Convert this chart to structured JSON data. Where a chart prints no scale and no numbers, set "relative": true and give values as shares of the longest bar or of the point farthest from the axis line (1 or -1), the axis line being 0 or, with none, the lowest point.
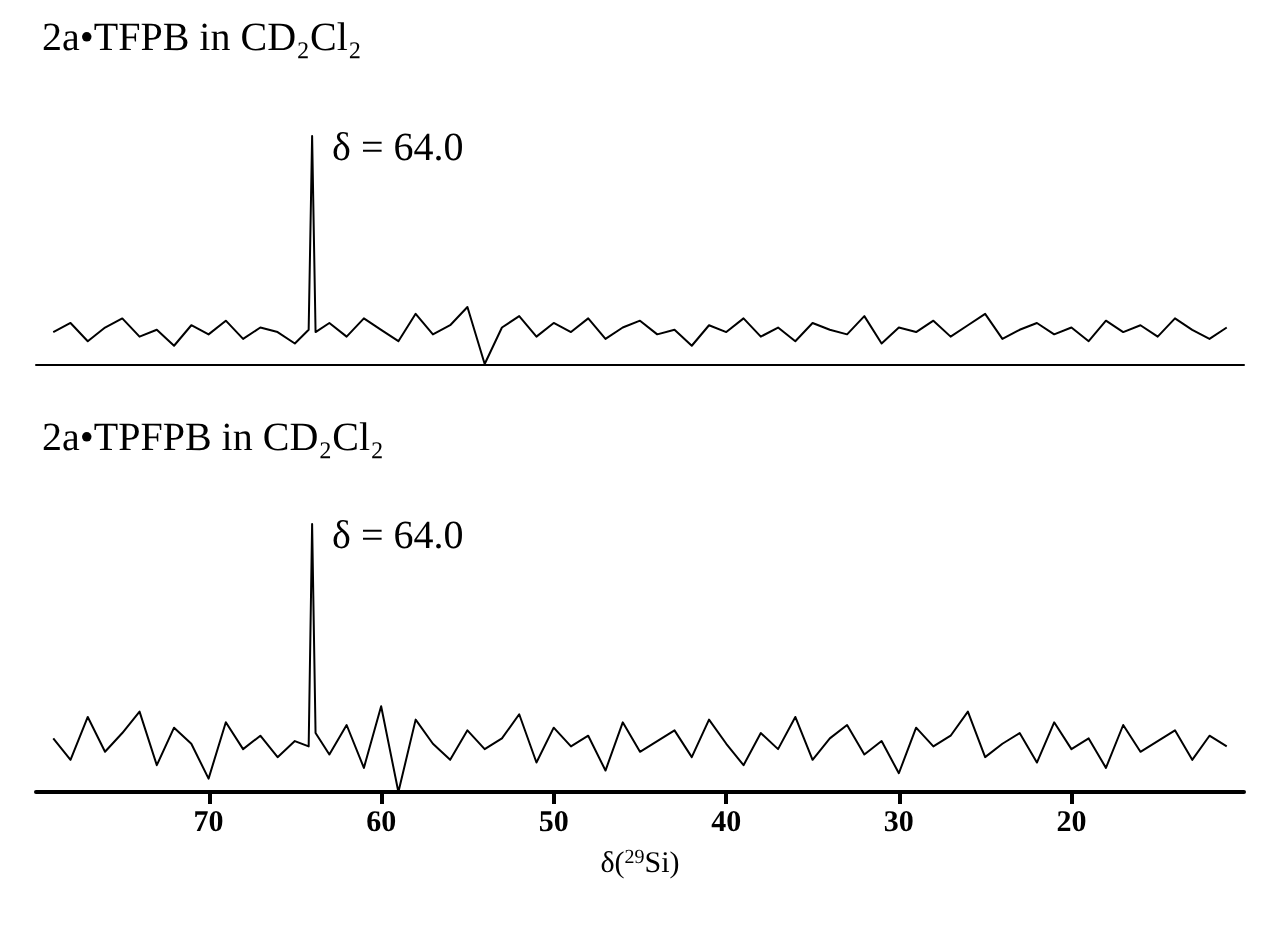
{
  "chart_data": [
    {
      "type": "line",
      "title": "2a•TFPB in CD₂Cl₂",
      "relative": true,
      "xlim": [
        80,
        10
      ],
      "xticks": [
        70,
        60,
        50,
        40,
        30,
        20
      ],
      "tick_labels": false,
      "x": [
        79,
        78,
        77,
        76,
        75,
        74,
        73,
        72,
        71,
        70,
        69,
        68,
        67,
        66,
        65,
        64.2,
        64,
        63.8,
        63,
        62,
        61,
        60,
        59,
        58,
        57,
        56,
        55,
        54,
        53,
        52,
        51,
        50,
        49,
        48,
        47,
        46,
        45,
        44,
        43,
        42,
        41,
        40,
        39,
        38,
        37,
        36,
        35,
        34,
        33,
        32,
        31,
        30,
        29,
        28,
        27,
        26,
        25,
        24,
        23,
        22,
        21,
        20,
        19,
        18,
        17,
        16,
        15,
        14,
        13,
        12,
        11
      ],
      "series": [
        {
          "color": "#000000",
          "values": [
            0.14,
            0.18,
            0.1,
            0.16,
            0.2,
            0.12,
            0.15,
            0.08,
            0.17,
            0.13,
            0.19,
            0.11,
            0.16,
            0.14,
            0.09,
            0.15,
            1,
            0.14,
            0.18,
            0.12,
            0.2,
            0.15,
            0.1,
            0.22,
            0.13,
            0.17,
            0.25,
            0.0,
            0.16,
            0.21,
            0.12,
            0.18,
            0.14,
            0.2,
            0.11,
            0.16,
            0.19,
            0.13,
            0.15,
            0.08,
            0.17,
            0.14,
            0.2,
            0.12,
            0.16,
            0.1,
            0.18,
            0.15,
            0.13,
            0.21,
            0.09,
            0.16,
            0.14,
            0.19,
            0.12,
            0.17,
            0.22,
            0.11,
            0.15,
            0.18,
            0.13,
            0.16,
            0.1,
            0.19,
            0.14,
            0.17,
            0.12,
            0.2,
            0.15,
            0.11,
            0.16
          ]
        }
      ],
      "annotations": [
        {
          "text": "δ = 64.0",
          "x": 64,
          "y": 1
        }
      ]
    },
    {
      "type": "line",
      "title": "2a•TPFPB in CD₂Cl₂",
      "relative": true,
      "xlim": [
        80,
        10
      ],
      "xticks": [
        70,
        60,
        50,
        40,
        30,
        20
      ],
      "tick_labels": "x",
      "xlabel": "δ($^{29}$Si)",
      "x": [
        79,
        78,
        77,
        76,
        75,
        74,
        73,
        72,
        71,
        70,
        69,
        68,
        67,
        66,
        65,
        64.2,
        64,
        63.8,
        63,
        62,
        61,
        60,
        59,
        58,
        57,
        56,
        55,
        54,
        53,
        52,
        51,
        50,
        49,
        48,
        47,
        46,
        45,
        44,
        43,
        42,
        41,
        40,
        39,
        38,
        37,
        36,
        35,
        34,
        33,
        32,
        31,
        30,
        29,
        28,
        27,
        26,
        25,
        24,
        23,
        22,
        21,
        20,
        19,
        18,
        17,
        16,
        15,
        14,
        13,
        12,
        11
      ],
      "series": [
        {
          "color": "#000000",
          "values": [
            0.2,
            0.12,
            0.28,
            0.15,
            0.22,
            0.3,
            0.1,
            0.24,
            0.18,
            0.05,
            0.26,
            0.16,
            0.21,
            0.13,
            0.19,
            0.17,
            1,
            0.22,
            0.14,
            0.25,
            0.09,
            0.32,
            0.0,
            0.27,
            0.18,
            0.12,
            0.23,
            0.16,
            0.2,
            0.29,
            0.11,
            0.24,
            0.17,
            0.21,
            0.08,
            0.26,
            0.15,
            0.19,
            0.23,
            0.13,
            0.27,
            0.18,
            0.1,
            0.22,
            0.16,
            0.28,
            0.12,
            0.2,
            0.25,
            0.14,
            0.19,
            0.07,
            0.24,
            0.17,
            0.21,
            0.3,
            0.13,
            0.18,
            0.22,
            0.11,
            0.26,
            0.16,
            0.2,
            0.09,
            0.25,
            0.15,
            0.19,
            0.23,
            0.12,
            0.21,
            0.17
          ]
        }
      ],
      "annotations": [
        {
          "text": "δ = 64.0",
          "x": 64,
          "y": 1
        }
      ]
    }
  ]
}
